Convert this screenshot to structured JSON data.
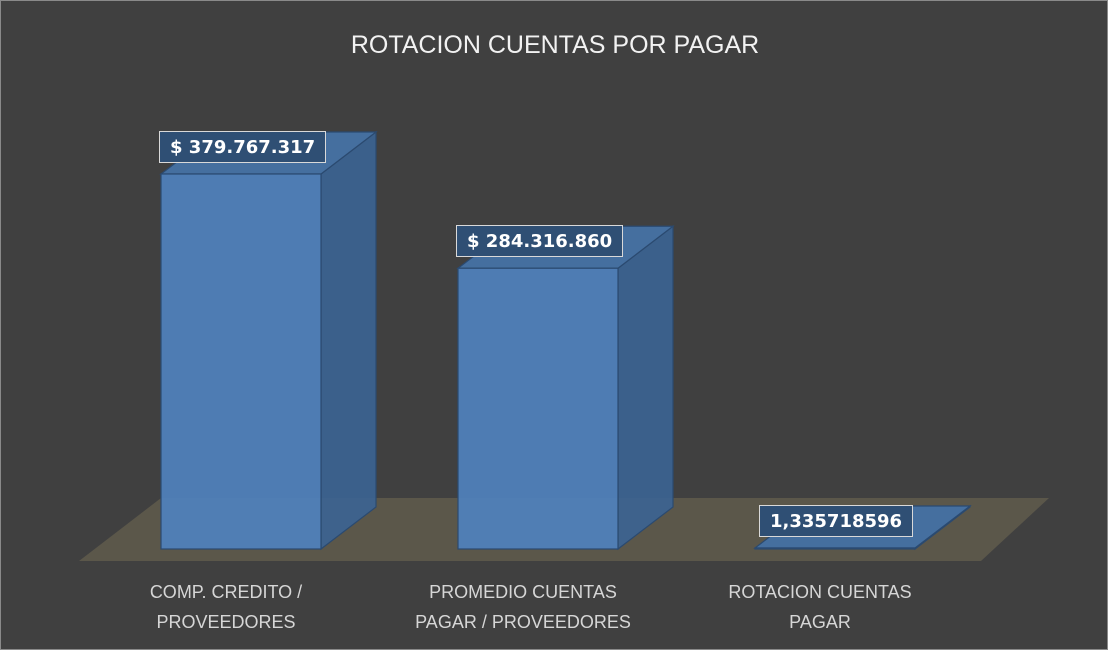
{
  "chart_data": {
    "type": "bar3d",
    "title": "ROTACION CUENTAS POR PAGAR",
    "categories": [
      "COMP. CREDITO / PROVEEDORES",
      "PROMEDIO CUENTAS PAGAR / PROVEEDORES",
      "ROTACION CUENTAS PAGAR"
    ],
    "values": [
      379767317,
      284316860,
      1.335718596
    ],
    "value_labels": [
      "$ 379.767.317",
      "$ 284.316.860",
      "1,335718596"
    ],
    "color": "#4f81bd"
  }
}
